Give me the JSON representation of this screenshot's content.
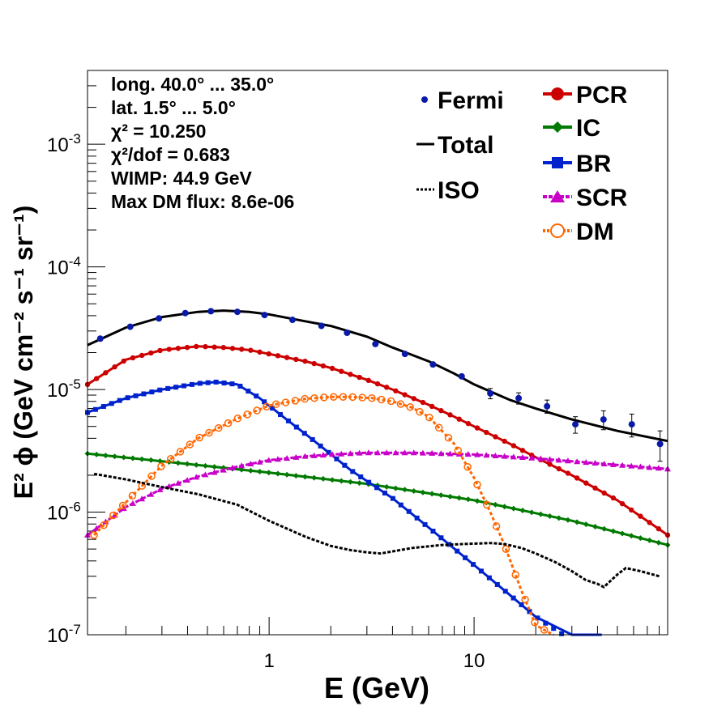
{
  "chart_data": {
    "type": "line",
    "xscale": "log",
    "yscale": "log",
    "xlim": [
      0.13,
      88
    ],
    "ylim": [
      1e-07,
      0.004
    ],
    "xlabel": "E (GeV)",
    "ylabel": "E² ϕ (GeV cm⁻² s⁻¹ sr⁻¹)",
    "x_ticks": [
      {
        "value": 1,
        "label": "1"
      },
      {
        "value": 10,
        "label": "10"
      }
    ],
    "y_ticks": [
      {
        "value": 1e-07,
        "base": "10",
        "exp": "-7"
      },
      {
        "value": 1e-06,
        "base": "10",
        "exp": "-6"
      },
      {
        "value": 1e-05,
        "base": "10",
        "exp": "-5"
      },
      {
        "value": 0.0001,
        "base": "10",
        "exp": "-4"
      },
      {
        "value": 0.001,
        "base": "10",
        "exp": "-3"
      }
    ],
    "info_text": [
      "long. 40.0° ... 35.0°",
      "lat. 1.5° ... 5.0°",
      "χ² = 10.250",
      "χ²/dof = 0.683",
      "WIMP: 44.9 GeV",
      "Max DM flux: 8.6e-06"
    ],
    "legend_left": [
      {
        "label": "Fermi",
        "style": "dot"
      },
      {
        "label": "Total",
        "style": "solid"
      },
      {
        "label": "ISO",
        "style": "dotted"
      }
    ],
    "legend_right": [
      {
        "label": "PCR",
        "style": "circle"
      },
      {
        "label": "IC",
        "style": "diamond"
      },
      {
        "label": "BR",
        "style": "square"
      },
      {
        "label": "SCR",
        "style": "triangle"
      },
      {
        "label": "DM",
        "style": "open-circle"
      }
    ],
    "fermi": {
      "name": "Fermi",
      "color": "#0a1aa8",
      "x": [
        0.15,
        0.21,
        0.29,
        0.39,
        0.52,
        0.7,
        0.95,
        1.3,
        1.8,
        2.4,
        3.3,
        4.6,
        6.3,
        8.7,
        12.0,
        16.5,
        22.7,
        31.2,
        42.8,
        58.8,
        80.8
      ],
      "y": [
        2.6e-05,
        3.25e-05,
        3.8e-05,
        4.2e-05,
        4.35e-05,
        4.3e-05,
        4.05e-05,
        3.7e-05,
        3.3e-05,
        2.9e-05,
        2.35e-05,
        1.95e-05,
        1.6e-05,
        1.28e-05,
        9.3e-06,
        8.5e-06,
        7.3e-06,
        5.2e-06,
        5.7e-06,
        5.2e-06,
        3.6e-06
      ],
      "err": [
        3e-07,
        4e-07,
        4e-07,
        4e-07,
        5e-07,
        5e-07,
        5e-07,
        5e-07,
        5e-07,
        5e-07,
        5e-07,
        6e-07,
        6e-07,
        8e-08,
        9e-07,
        9e-07,
        9e-07,
        8e-07,
        1e-06,
        1.1e-06,
        1e-06
      ]
    },
    "series": [
      {
        "name": "Total",
        "color": "#000000",
        "marker": "none",
        "dash": "solid",
        "x": [
          0.13,
          0.2,
          0.3,
          0.45,
          0.6,
          0.8,
          1.0,
          1.5,
          2,
          3,
          4,
          6,
          8,
          10,
          15,
          20,
          30,
          50,
          88
        ],
        "y": [
          2.3e-05,
          3.2e-05,
          3.9e-05,
          4.3e-05,
          4.4e-05,
          4.3e-05,
          4.1e-05,
          3.6e-05,
          3.3e-05,
          2.7e-05,
          2.2e-05,
          1.7e-05,
          1.35e-05,
          1.1e-05,
          8.2e-06,
          7e-06,
          5.7e-06,
          4.6e-06,
          3.8e-06
        ]
      },
      {
        "name": "PCR",
        "color": "#cc0000",
        "marker": "circle",
        "dash": "solid",
        "x": [
          0.13,
          0.2,
          0.3,
          0.45,
          0.6,
          0.8,
          1.0,
          1.5,
          2,
          3,
          4,
          6,
          8,
          10,
          15,
          20,
          30,
          50,
          88
        ],
        "y": [
          1.1e-05,
          1.75e-05,
          2.1e-05,
          2.25e-05,
          2.2e-05,
          2.1e-05,
          1.95e-05,
          1.7e-05,
          1.5e-05,
          1.2e-05,
          1e-05,
          7.5e-06,
          6e-06,
          5e-06,
          3.6e-06,
          2.8e-06,
          2e-06,
          1.25e-06,
          6.5e-07
        ]
      },
      {
        "name": "IC",
        "color": "#007a00",
        "marker": "diamond",
        "dash": "solid",
        "x": [
          0.13,
          0.3,
          1,
          3,
          10,
          30,
          88
        ],
        "y": [
          3e-06,
          2.6e-06,
          2.1e-06,
          1.7e-06,
          1.25e-06,
          8.5e-07,
          5.4e-07
        ]
      },
      {
        "name": "BR",
        "color": "#0022cc",
        "marker": "square",
        "dash": "solid",
        "x": [
          0.13,
          0.2,
          0.3,
          0.45,
          0.55,
          0.7,
          0.9,
          1.2,
          1.6,
          2.5,
          4,
          6,
          10,
          15,
          20,
          30,
          42
        ],
        "y": [
          6.5e-06,
          8.5e-06,
          1e-05,
          1.12e-05,
          1.15e-05,
          1.1e-05,
          8.5e-06,
          5.8e-06,
          4e-06,
          2.2e-06,
          1.3e-06,
          7.5e-07,
          3.7e-07,
          2.1e-07,
          1.4e-07,
          9e-08,
          6e-08
        ]
      },
      {
        "name": "SCR",
        "color": "#c800c8",
        "marker": "triangle",
        "dash": "dashed",
        "x": [
          0.13,
          0.2,
          0.3,
          0.45,
          0.7,
          1,
          1.5,
          2,
          3,
          5,
          10,
          20,
          40,
          88
        ],
        "y": [
          6.5e-07,
          1.1e-06,
          1.55e-06,
          1.95e-06,
          2.35e-06,
          2.65e-06,
          2.85e-06,
          2.95e-06,
          3.05e-06,
          3.05e-06,
          2.95e-06,
          2.75e-06,
          2.5e-06,
          2.25e-06
        ]
      },
      {
        "name": "DM",
        "color": "#ff6600",
        "marker": "open-circle",
        "dash": "dotted",
        "x": [
          0.14,
          0.2,
          0.3,
          0.45,
          0.7,
          1.0,
          1.5,
          2.0,
          2.5,
          3.2,
          4.0,
          5.0,
          6.0,
          8.0,
          10.0,
          12.0,
          14.0,
          17.0,
          20.0,
          23.0,
          24.5
        ],
        "y": [
          6.5e-07,
          1.2e-06,
          2.4e-06,
          4e-06,
          5.8e-06,
          7.4e-06,
          8.4e-06,
          8.7e-06,
          8.7e-06,
          8.5e-06,
          8e-06,
          7.1e-06,
          6e-06,
          3.6e-06,
          1.9e-06,
          1e-06,
          5.5e-07,
          2.3e-07,
          1.2e-07,
          1.05e-07,
          1e-07
        ]
      },
      {
        "name": "ISO",
        "color": "#000000",
        "marker": "none",
        "dash": "dotted",
        "x": [
          0.14,
          0.2,
          0.3,
          0.45,
          0.7,
          1.0,
          1.5,
          2.0,
          2.5,
          3.0,
          3.5,
          5.0,
          7.0,
          9.0,
          12.0,
          14.0,
          17.0,
          20.0,
          25.0,
          30.0,
          35.0,
          40.0,
          43.0,
          50.0,
          55.0,
          65.0,
          80.0
        ],
        "y": [
          2.05e-06,
          1.85e-06,
          1.6e-06,
          1.4e-06,
          1.15e-06,
          8.5e-07,
          6.3e-07,
          5.3e-07,
          4.9e-07,
          4.7e-07,
          4.6e-07,
          5.1e-07,
          5.4e-07,
          5.5e-07,
          5.6e-07,
          5.5e-07,
          5.1e-07,
          4.6e-07,
          3.9e-07,
          3.3e-07,
          2.8e-07,
          2.6e-07,
          2.45e-07,
          3.1e-07,
          3.5e-07,
          3.3e-07,
          3e-07
        ]
      }
    ]
  }
}
